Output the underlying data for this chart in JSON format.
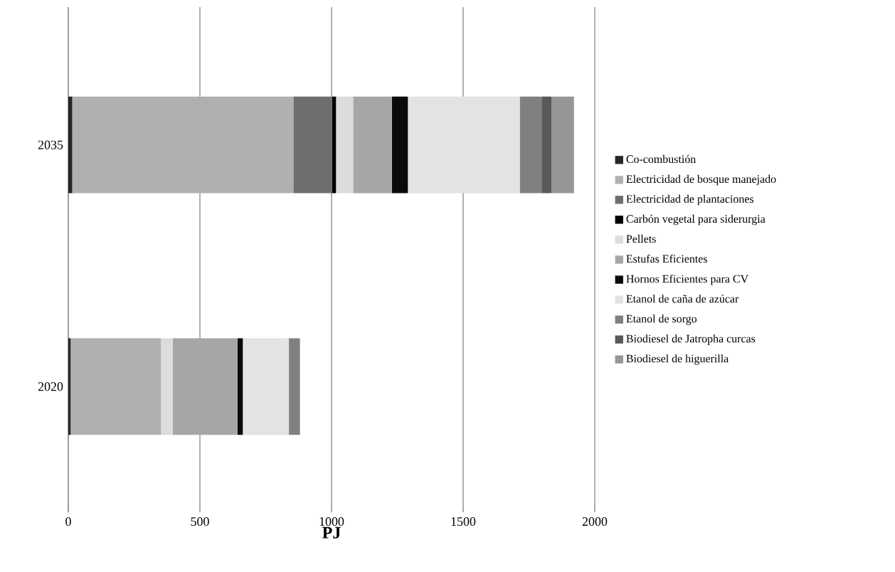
{
  "chart_data": {
    "type": "bar",
    "orientation": "horizontal",
    "stacked": true,
    "xlabel": "PJ",
    "categories": [
      "2035",
      "2020"
    ],
    "xlim": [
      0,
      2000
    ],
    "xticks": [
      0,
      500,
      1000,
      1500,
      2000
    ],
    "grid": "x",
    "legend": "right",
    "series": [
      {
        "name": "Co-combustión",
        "color": "#262626",
        "values": [
          15,
          9
        ]
      },
      {
        "name": "Electricidad de bosque manejado",
        "color": "#b0b0b0",
        "values": [
          840,
          343
        ]
      },
      {
        "name": "Electricidad de plantaciones",
        "color": "#6e6e6e",
        "values": [
          147,
          0
        ]
      },
      {
        "name": "Carbón vegetal para siderurgia",
        "color": "#000000",
        "values": [
          15,
          0
        ]
      },
      {
        "name": "Pellets",
        "color": "#dcdcdc",
        "values": [
          65,
          45
        ]
      },
      {
        "name": "Estufas Eficientes",
        "color": "#a6a6a6",
        "values": [
          147,
          246
        ]
      },
      {
        "name": "Hornos Eficientes para  CV",
        "color": "#0a0a0a",
        "values": [
          61,
          20
        ]
      },
      {
        "name": "Etanol de caña de azúcar",
        "color": "#e3e3e3",
        "values": [
          425,
          175
        ]
      },
      {
        "name": "Etanol de sorgo",
        "color": "#808080",
        "values": [
          85,
          42
        ]
      },
      {
        "name": "Biodiesel de Jatropha curcas",
        "color": "#595959",
        "values": [
          36,
          0
        ]
      },
      {
        "name": "Biodiesel de higuerilla",
        "color": "#969696",
        "values": [
          85,
          0
        ]
      }
    ]
  }
}
